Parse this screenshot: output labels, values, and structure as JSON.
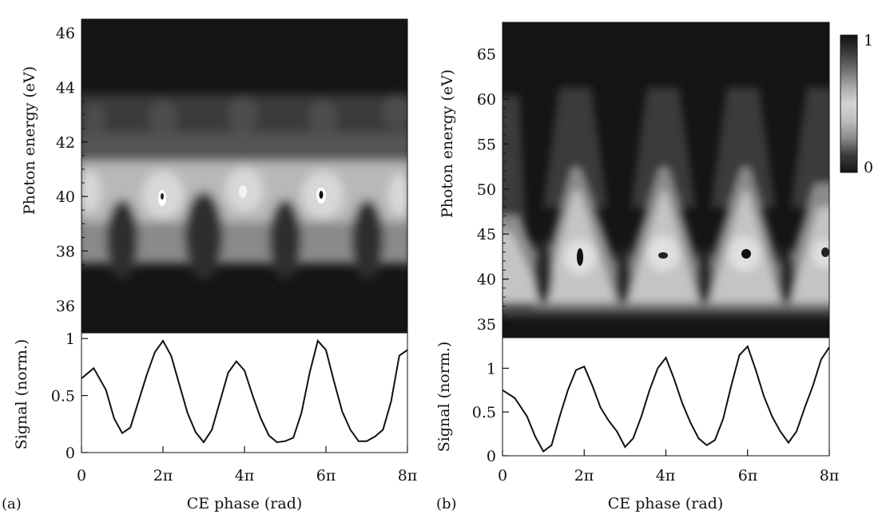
{
  "figure": {
    "panels": [
      {
        "letter": "(a)",
        "heatmap": {
          "ylabel": "Photon energy (eV)",
          "y_ticks": [
            36,
            38,
            40,
            42,
            44,
            46
          ],
          "ylim": [
            35,
            46.5
          ],
          "xlim": [
            0,
            8
          ]
        },
        "signal": {
          "ylabel": "Signal (norm.)",
          "y_ticks": [
            0,
            0.5,
            1
          ],
          "ylim": [
            0,
            1.05
          ]
        },
        "x_tick_labels": [
          "0",
          "2π",
          "4π",
          "6π",
          "8π"
        ],
        "xlabel": "CE phase (rad)"
      },
      {
        "letter": "(b)",
        "heatmap": {
          "ylabel": "Photon energy (eV)",
          "y_ticks": [
            35,
            40,
            45,
            50,
            55,
            60,
            65
          ],
          "ylim": [
            33.5,
            68.5
          ],
          "xlim": [
            0,
            8
          ]
        },
        "signal": {
          "ylabel": "Signal (norm.)",
          "y_ticks": [
            0,
            0.5,
            1
          ],
          "ylim": [
            0,
            1.35
          ]
        },
        "x_tick_labels": [
          "0",
          "2π",
          "4π",
          "6π",
          "8π"
        ],
        "xlabel": "CE phase (rad)"
      }
    ],
    "colorbar": {
      "tick_labels": [
        "1",
        "0"
      ],
      "range": [
        0,
        1
      ],
      "colors": [
        "#111111",
        "#3a3a3a",
        "#6e6e6e",
        "#a8a8a8",
        "#d4d4d4",
        "#bdbdbd",
        "#8a8a8a",
        "#3c3c3c",
        "#141414"
      ]
    }
  },
  "chart_data": [
    {
      "type": "heatmap",
      "panel": "a",
      "xlabel": "CE phase (rad)",
      "ylabel": "Photon energy (eV)",
      "x_range_pi": [
        0,
        8
      ],
      "ylim": [
        35,
        46.5
      ],
      "bright_band_ev": [
        36.5,
        41
      ],
      "weak_band_ev": [
        41,
        43.3
      ],
      "intensity_peaks_x_pi": [
        2,
        4,
        6
      ]
    },
    {
      "type": "line",
      "panel": "a",
      "xlabel": "CE phase (rad)",
      "ylabel": "Signal (norm.)",
      "ylim": [
        0,
        1.05
      ],
      "x_pi": [
        0,
        0.3,
        0.6,
        0.8,
        1.0,
        1.2,
        1.4,
        1.6,
        1.8,
        2.0,
        2.2,
        2.4,
        2.6,
        2.8,
        3.0,
        3.2,
        3.4,
        3.6,
        3.8,
        4.0,
        4.2,
        4.4,
        4.6,
        4.8,
        5.0,
        5.2,
        5.4,
        5.6,
        5.8,
        6.0,
        6.2,
        6.4,
        6.6,
        6.8,
        7.0,
        7.2,
        7.4,
        7.6,
        7.8,
        8.0
      ],
      "values": [
        0.65,
        0.74,
        0.55,
        0.3,
        0.17,
        0.22,
        0.45,
        0.68,
        0.88,
        0.98,
        0.85,
        0.6,
        0.35,
        0.18,
        0.09,
        0.2,
        0.45,
        0.7,
        0.8,
        0.72,
        0.5,
        0.3,
        0.15,
        0.09,
        0.1,
        0.13,
        0.35,
        0.7,
        0.98,
        0.9,
        0.62,
        0.36,
        0.2,
        0.1,
        0.1,
        0.14,
        0.2,
        0.45,
        0.85,
        0.9
      ]
    },
    {
      "type": "heatmap",
      "panel": "b",
      "xlabel": "CE phase (rad)",
      "ylabel": "Photon energy (eV)",
      "x_range_pi": [
        0,
        8
      ],
      "ylim": [
        33.5,
        68.5
      ],
      "bright_band_ev": [
        38,
        52
      ],
      "plume_top_ev": 61,
      "intensity_peaks_x_pi": [
        2,
        4,
        6,
        8
      ],
      "colorbar_range": [
        0,
        1
      ]
    },
    {
      "type": "line",
      "panel": "b",
      "xlabel": "CE phase (rad)",
      "ylabel": "Signal (norm.)",
      "ylim": [
        0,
        1.35
      ],
      "x_pi": [
        0,
        0.3,
        0.6,
        0.8,
        1.0,
        1.2,
        1.4,
        1.6,
        1.8,
        2.0,
        2.2,
        2.4,
        2.6,
        2.8,
        3.0,
        3.2,
        3.4,
        3.6,
        3.8,
        4.0,
        4.2,
        4.4,
        4.6,
        4.8,
        5.0,
        5.2,
        5.4,
        5.6,
        5.8,
        6.0,
        6.2,
        6.4,
        6.6,
        6.8,
        7.0,
        7.2,
        7.4,
        7.6,
        7.8,
        8.0
      ],
      "values": [
        0.75,
        0.66,
        0.45,
        0.22,
        0.05,
        0.12,
        0.45,
        0.75,
        0.98,
        1.02,
        0.8,
        0.55,
        0.4,
        0.28,
        0.1,
        0.2,
        0.45,
        0.75,
        1.0,
        1.12,
        0.88,
        0.6,
        0.38,
        0.2,
        0.12,
        0.18,
        0.42,
        0.8,
        1.15,
        1.25,
        0.98,
        0.68,
        0.45,
        0.28,
        0.15,
        0.28,
        0.55,
        0.8,
        1.1,
        1.24
      ]
    }
  ]
}
